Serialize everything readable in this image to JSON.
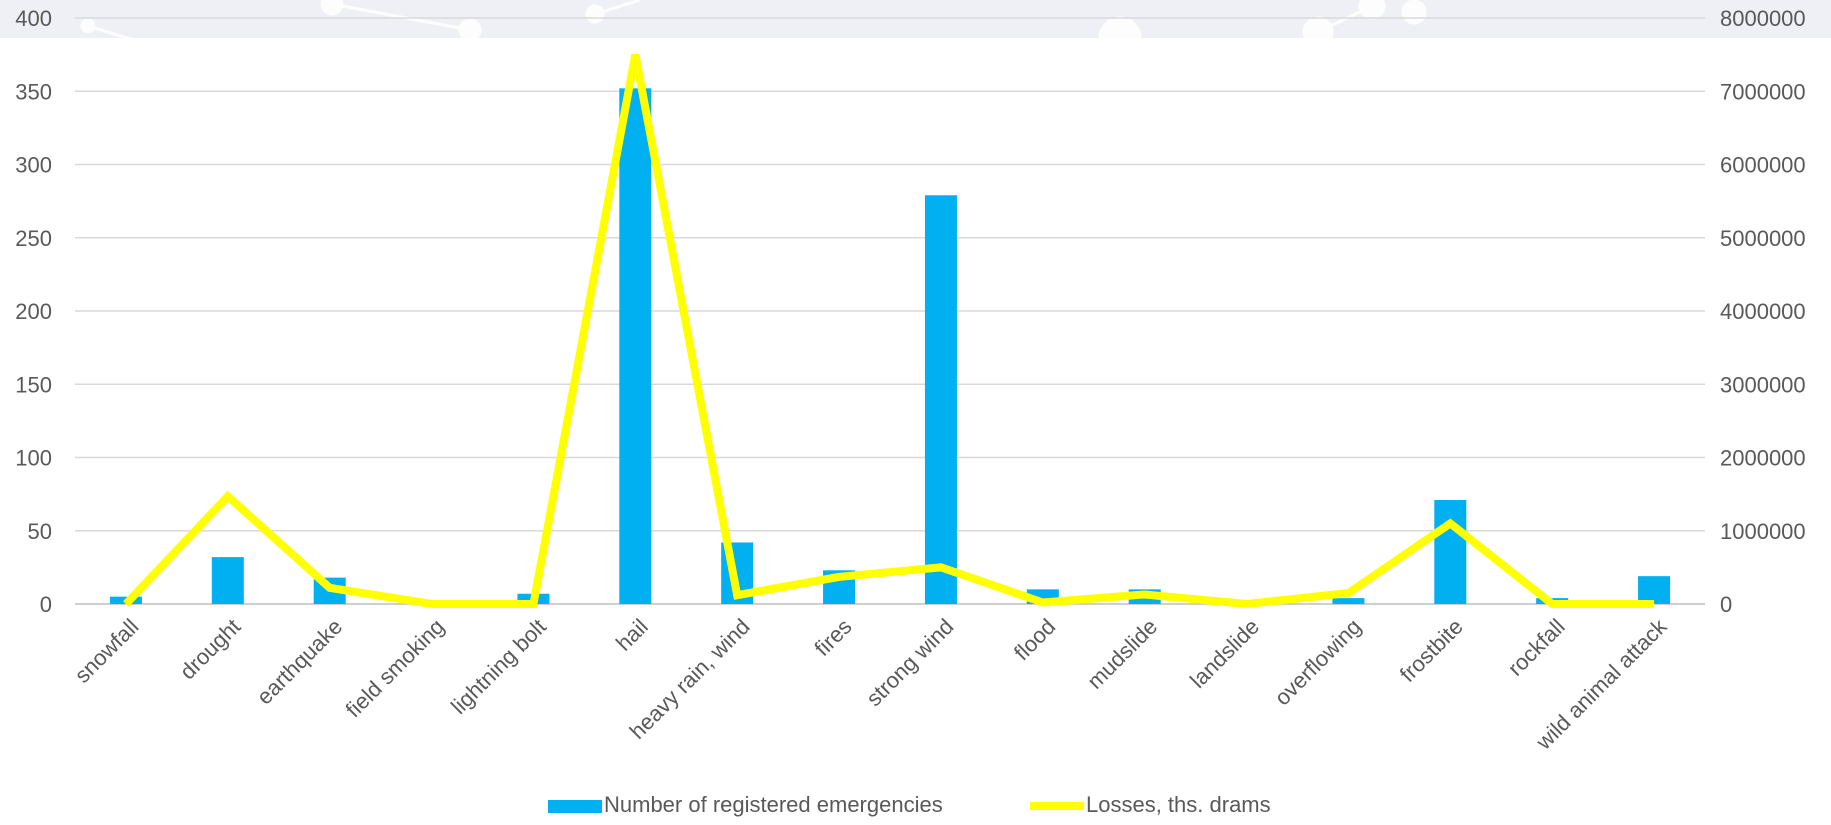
{
  "chart_data": {
    "type": "bar+line",
    "title": "",
    "categories": [
      "snowfall",
      "drought",
      "earthquake",
      "field smoking",
      "lightning bolt",
      "hail",
      "heavy rain, wind",
      "fires",
      "strong wind",
      "flood",
      "mudslide",
      "landslide",
      "overflowing",
      "frostbite",
      "rockfall",
      "wild animal attack"
    ],
    "series": [
      {
        "name": "Number of registered emergencies",
        "kind": "bar",
        "axis": "left",
        "color": "#00B0F0",
        "values": [
          5,
          32,
          18,
          0,
          7,
          352,
          42,
          23,
          279,
          10,
          10,
          0,
          4,
          71,
          4,
          19
        ]
      },
      {
        "name": "Losses, ths. drams",
        "kind": "line",
        "axis": "right",
        "color": "#FFFF00",
        "values": [
          0,
          1470000,
          220000,
          0,
          0,
          7500000,
          120000,
          370000,
          500000,
          20000,
          130000,
          0,
          150000,
          1100000,
          0,
          0
        ]
      }
    ],
    "y_left": {
      "min": 0,
      "max": 400,
      "ticks": [
        0,
        50,
        100,
        150,
        200,
        250,
        300,
        350,
        400
      ]
    },
    "y_right": {
      "min": 0,
      "max": 8000000,
      "ticks": [
        0,
        1000000,
        2000000,
        3000000,
        4000000,
        5000000,
        6000000,
        7000000,
        8000000
      ]
    },
    "grid": true,
    "legend_position": "bottom"
  }
}
